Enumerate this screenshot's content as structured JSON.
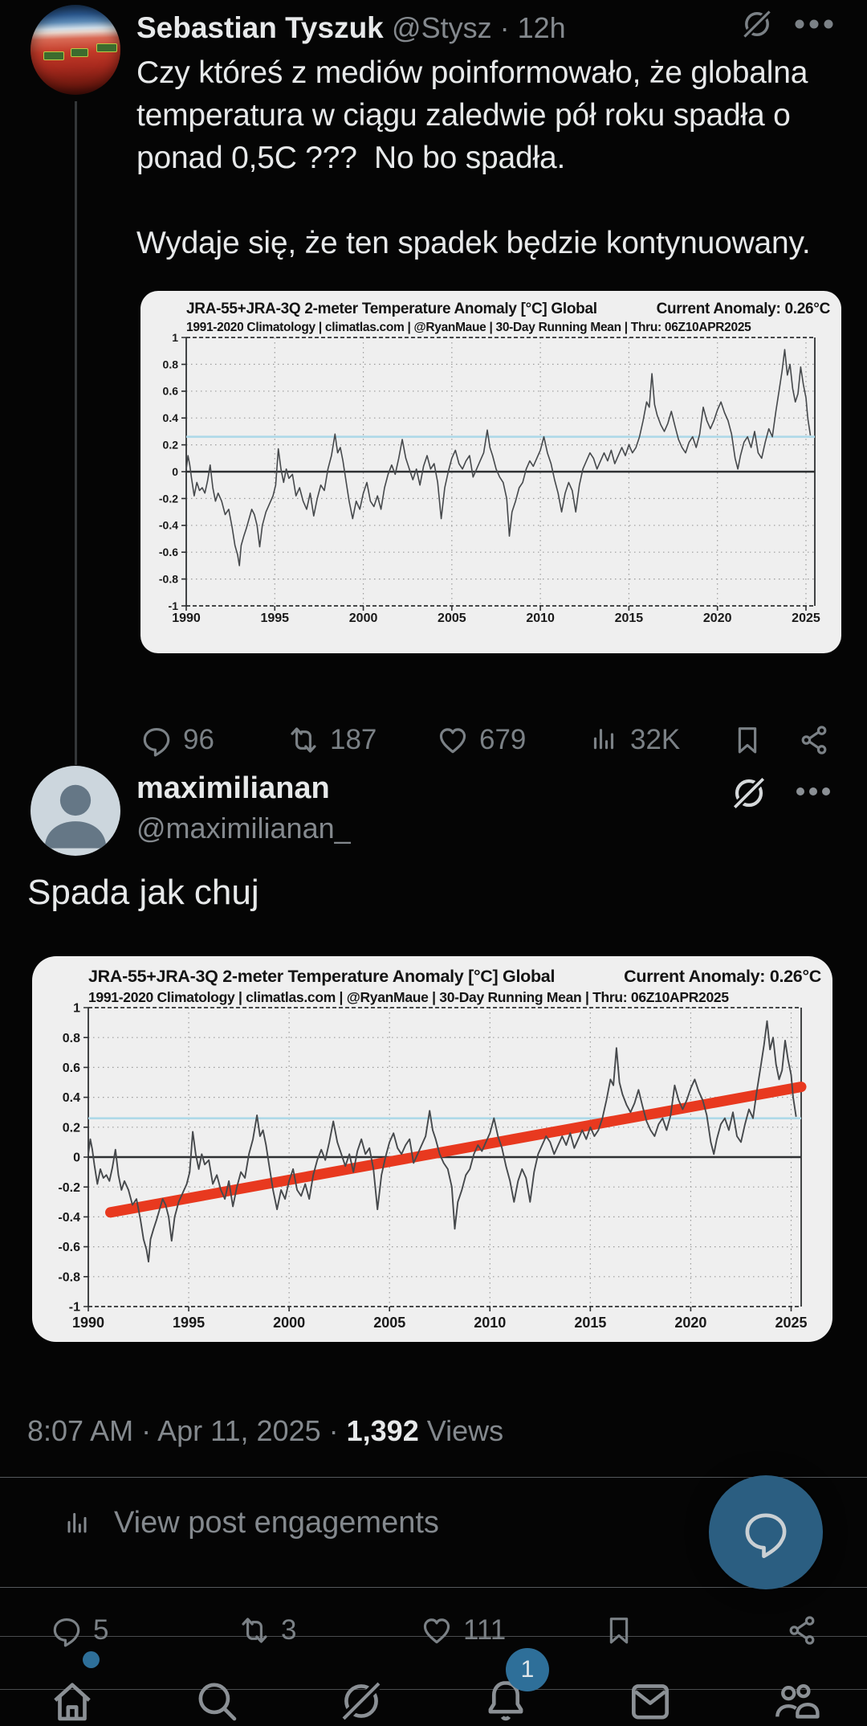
{
  "post": {
    "author": {
      "name": "Sebastian Tyszuk",
      "handle": "@Stysz",
      "separator": "·",
      "time": "12h"
    },
    "text": "Czy któreś z mediów poinformowało, że globalna temperatura w ciągu zaledwie pół roku spadła o ponad 0,5C ???  No bo spadła.\n\nWydaje się, że ten spadek będzie kontynuowany.",
    "stats": {
      "replies": "96",
      "reposts": "187",
      "likes": "679",
      "views": "32K"
    }
  },
  "reply": {
    "author": {
      "name": "maximilianan",
      "handle": "@maximilianan_"
    },
    "text": "Spada jak chuj",
    "timestamp": {
      "time": "8:07 AM",
      "separator": "·",
      "date": "Apr 11, 2025",
      "views_count": "1,392",
      "views_label": "Views"
    },
    "engagements_link": "View post engagements",
    "stats": {
      "replies": "5",
      "reposts": "3",
      "likes": "111"
    }
  },
  "nav": {
    "notifications_badge": "1"
  },
  "colors": {
    "accent_blue": "#2e6f99",
    "fab_blue": "#2b5e81",
    "chart_line": "#46494c",
    "trend_red": "#e8391f",
    "anomaly_blue": "#aed9e8"
  },
  "chart_data": {
    "type": "line",
    "title": "JRA-55+JRA-3Q 2-meter Temperature Anomaly [°C] Global",
    "subtitle": "1991-2020 Climatology | climatlas.com | @RyanMaue | 30-Day Running Mean | Thru: 06Z10APR2025",
    "current_anomaly_label": "Current Anomaly: 0.26°C",
    "xlabel": "",
    "ylabel": "",
    "xlim": [
      1990,
      2025.5
    ],
    "ylim": [
      -1,
      1
    ],
    "x_ticks": [
      1990,
      1995,
      2000,
      2005,
      2010,
      2015,
      2020,
      2025
    ],
    "y_ticks": [
      "1",
      "0.8",
      "0.6",
      "0.4",
      "0.2",
      "0",
      "-0.2",
      "-0.4",
      "-0.6",
      "-0.8",
      "-1"
    ],
    "reference_lines": {
      "zero": 0,
      "current_anomaly": 0.26
    },
    "trend": {
      "x": [
        1991.1,
        2025.5
      ],
      "y": [
        -0.37,
        0.47
      ]
    },
    "instances": [
      {
        "id": "temperature-chart-1",
        "show_trend": false
      },
      {
        "id": "temperature-chart-2",
        "show_trend": true
      }
    ],
    "points": [
      [
        1990.0,
        0.02
      ],
      [
        1990.1,
        0.12
      ],
      [
        1990.2,
        0.05
      ],
      [
        1990.3,
        -0.05
      ],
      [
        1990.45,
        -0.18
      ],
      [
        1990.6,
        -0.08
      ],
      [
        1990.75,
        -0.14
      ],
      [
        1990.9,
        -0.12
      ],
      [
        1991.05,
        -0.16
      ],
      [
        1991.2,
        -0.07
      ],
      [
        1991.35,
        0.05
      ],
      [
        1991.5,
        -0.12
      ],
      [
        1991.65,
        -0.22
      ],
      [
        1991.8,
        -0.16
      ],
      [
        1992.0,
        -0.22
      ],
      [
        1992.2,
        -0.32
      ],
      [
        1992.4,
        -0.28
      ],
      [
        1992.6,
        -0.42
      ],
      [
        1992.75,
        -0.55
      ],
      [
        1992.9,
        -0.62
      ],
      [
        1993.0,
        -0.7
      ],
      [
        1993.1,
        -0.55
      ],
      [
        1993.25,
        -0.48
      ],
      [
        1993.4,
        -0.42
      ],
      [
        1993.55,
        -0.35
      ],
      [
        1993.7,
        -0.28
      ],
      [
        1993.85,
        -0.32
      ],
      [
        1994.0,
        -0.4
      ],
      [
        1994.15,
        -0.56
      ],
      [
        1994.3,
        -0.4
      ],
      [
        1994.5,
        -0.3
      ],
      [
        1994.7,
        -0.24
      ],
      [
        1994.9,
        -0.18
      ],
      [
        1995.05,
        -0.1
      ],
      [
        1995.2,
        0.17
      ],
      [
        1995.35,
        0.02
      ],
      [
        1995.5,
        -0.08
      ],
      [
        1995.65,
        0.02
      ],
      [
        1995.8,
        -0.05
      ],
      [
        1996.0,
        -0.02
      ],
      [
        1996.2,
        -0.18
      ],
      [
        1996.4,
        -0.12
      ],
      [
        1996.6,
        -0.22
      ],
      [
        1996.8,
        -0.28
      ],
      [
        1997.0,
        -0.16
      ],
      [
        1997.2,
        -0.33
      ],
      [
        1997.4,
        -0.2
      ],
      [
        1997.6,
        -0.1
      ],
      [
        1997.8,
        -0.14
      ],
      [
        1998.0,
        0.02
      ],
      [
        1998.2,
        0.12
      ],
      [
        1998.4,
        0.28
      ],
      [
        1998.55,
        0.14
      ],
      [
        1998.7,
        0.18
      ],
      [
        1998.85,
        0.08
      ],
      [
        1999.0,
        -0.05
      ],
      [
        1999.2,
        -0.22
      ],
      [
        1999.4,
        -0.35
      ],
      [
        1999.6,
        -0.22
      ],
      [
        1999.8,
        -0.28
      ],
      [
        2000.0,
        -0.16
      ],
      [
        2000.2,
        -0.08
      ],
      [
        2000.4,
        -0.22
      ],
      [
        2000.6,
        -0.26
      ],
      [
        2000.8,
        -0.18
      ],
      [
        2001.0,
        -0.28
      ],
      [
        2001.2,
        -0.12
      ],
      [
        2001.4,
        -0.02
      ],
      [
        2001.6,
        0.05
      ],
      [
        2001.8,
        -0.02
      ],
      [
        2002.0,
        0.1
      ],
      [
        2002.2,
        0.24
      ],
      [
        2002.4,
        0.1
      ],
      [
        2002.6,
        0.02
      ],
      [
        2002.8,
        -0.06
      ],
      [
        2003.0,
        0.02
      ],
      [
        2003.2,
        -0.1
      ],
      [
        2003.4,
        0.04
      ],
      [
        2003.6,
        0.12
      ],
      [
        2003.8,
        0.02
      ],
      [
        2004.0,
        0.06
      ],
      [
        2004.2,
        -0.08
      ],
      [
        2004.4,
        -0.35
      ],
      [
        2004.6,
        -0.12
      ],
      [
        2004.8,
        0.0
      ],
      [
        2005.0,
        0.1
      ],
      [
        2005.2,
        0.16
      ],
      [
        2005.4,
        0.06
      ],
      [
        2005.6,
        0.02
      ],
      [
        2005.8,
        0.08
      ],
      [
        2006.0,
        0.12
      ],
      [
        2006.2,
        -0.04
      ],
      [
        2006.4,
        0.02
      ],
      [
        2006.6,
        0.08
      ],
      [
        2006.8,
        0.14
      ],
      [
        2007.0,
        0.31
      ],
      [
        2007.15,
        0.18
      ],
      [
        2007.3,
        0.12
      ],
      [
        2007.5,
        0.02
      ],
      [
        2007.7,
        -0.04
      ],
      [
        2007.9,
        -0.08
      ],
      [
        2008.1,
        -0.2
      ],
      [
        2008.25,
        -0.48
      ],
      [
        2008.4,
        -0.3
      ],
      [
        2008.6,
        -0.22
      ],
      [
        2008.8,
        -0.12
      ],
      [
        2009.0,
        -0.08
      ],
      [
        2009.2,
        0.02
      ],
      [
        2009.4,
        0.08
      ],
      [
        2009.6,
        0.04
      ],
      [
        2009.8,
        0.1
      ],
      [
        2010.0,
        0.16
      ],
      [
        2010.2,
        0.26
      ],
      [
        2010.4,
        0.14
      ],
      [
        2010.6,
        0.06
      ],
      [
        2010.8,
        -0.06
      ],
      [
        2011.0,
        -0.16
      ],
      [
        2011.2,
        -0.3
      ],
      [
        2011.4,
        -0.16
      ],
      [
        2011.6,
        -0.08
      ],
      [
        2011.8,
        -0.14
      ],
      [
        2012.0,
        -0.3
      ],
      [
        2012.2,
        -0.1
      ],
      [
        2012.4,
        0.02
      ],
      [
        2012.6,
        0.08
      ],
      [
        2012.8,
        0.14
      ],
      [
        2013.0,
        0.1
      ],
      [
        2013.2,
        0.02
      ],
      [
        2013.4,
        0.08
      ],
      [
        2013.6,
        0.14
      ],
      [
        2013.8,
        0.08
      ],
      [
        2014.0,
        0.16
      ],
      [
        2014.2,
        0.06
      ],
      [
        2014.4,
        0.12
      ],
      [
        2014.6,
        0.18
      ],
      [
        2014.8,
        0.12
      ],
      [
        2015.0,
        0.2
      ],
      [
        2015.2,
        0.14
      ],
      [
        2015.4,
        0.18
      ],
      [
        2015.6,
        0.26
      ],
      [
        2015.8,
        0.38
      ],
      [
        2016.0,
        0.52
      ],
      [
        2016.15,
        0.48
      ],
      [
        2016.3,
        0.73
      ],
      [
        2016.45,
        0.5
      ],
      [
        2016.6,
        0.42
      ],
      [
        2016.8,
        0.35
      ],
      [
        2017.0,
        0.3
      ],
      [
        2017.2,
        0.36
      ],
      [
        2017.4,
        0.45
      ],
      [
        2017.6,
        0.34
      ],
      [
        2017.8,
        0.24
      ],
      [
        2018.0,
        0.18
      ],
      [
        2018.2,
        0.14
      ],
      [
        2018.4,
        0.22
      ],
      [
        2018.6,
        0.26
      ],
      [
        2018.8,
        0.18
      ],
      [
        2019.0,
        0.28
      ],
      [
        2019.2,
        0.48
      ],
      [
        2019.4,
        0.38
      ],
      [
        2019.6,
        0.32
      ],
      [
        2019.8,
        0.38
      ],
      [
        2020.0,
        0.46
      ],
      [
        2020.2,
        0.52
      ],
      [
        2020.4,
        0.44
      ],
      [
        2020.6,
        0.38
      ],
      [
        2020.8,
        0.28
      ],
      [
        2021.0,
        0.1
      ],
      [
        2021.15,
        0.02
      ],
      [
        2021.3,
        0.12
      ],
      [
        2021.5,
        0.22
      ],
      [
        2021.7,
        0.26
      ],
      [
        2021.9,
        0.18
      ],
      [
        2022.1,
        0.3
      ],
      [
        2022.3,
        0.14
      ],
      [
        2022.5,
        0.1
      ],
      [
        2022.7,
        0.22
      ],
      [
        2022.9,
        0.32
      ],
      [
        2023.1,
        0.26
      ],
      [
        2023.3,
        0.45
      ],
      [
        2023.5,
        0.62
      ],
      [
        2023.65,
        0.75
      ],
      [
        2023.8,
        0.91
      ],
      [
        2023.95,
        0.72
      ],
      [
        2024.1,
        0.8
      ],
      [
        2024.25,
        0.62
      ],
      [
        2024.4,
        0.52
      ],
      [
        2024.55,
        0.58
      ],
      [
        2024.7,
        0.78
      ],
      [
        2024.85,
        0.65
      ],
      [
        2025.0,
        0.55
      ],
      [
        2025.1,
        0.4
      ],
      [
        2025.25,
        0.27
      ]
    ]
  }
}
